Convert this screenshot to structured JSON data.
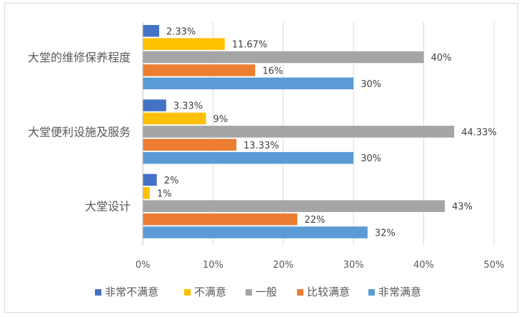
{
  "chart_data": {
    "type": "bar",
    "orientation": "horizontal",
    "categories": [
      "大堂的维修保养程度",
      "大堂便利设施及服务",
      "大堂设计"
    ],
    "series": [
      {
        "name": "非常不满意",
        "color": "#4472c4",
        "values": [
          2.33,
          3.33,
          2
        ],
        "labels": [
          "2.33%",
          "3.33%",
          "2%"
        ]
      },
      {
        "name": "不满意",
        "color": "#ffc000",
        "values": [
          11.67,
          9,
          1
        ],
        "labels": [
          "11.67%",
          "9%",
          "1%"
        ]
      },
      {
        "name": "一般",
        "color": "#a5a5a5",
        "values": [
          40,
          44.33,
          43
        ],
        "labels": [
          "40%",
          "44.33%",
          "43%"
        ]
      },
      {
        "name": "比较满意",
        "color": "#ed7d31",
        "values": [
          16,
          13.33,
          22
        ],
        "labels": [
          "16%",
          "13.33%",
          "22%"
        ]
      },
      {
        "name": "非常满意",
        "color": "#5b9bd5",
        "values": [
          30,
          30,
          32
        ],
        "labels": [
          "30%",
          "30%",
          "32%"
        ]
      }
    ],
    "xlim": [
      0,
      50
    ],
    "xticks": [
      "0%",
      "10%",
      "20%",
      "30%",
      "40%",
      "50%"
    ],
    "title": "",
    "xlabel": "",
    "ylabel": "",
    "grid": "vertical",
    "legend_position": "bottom"
  }
}
